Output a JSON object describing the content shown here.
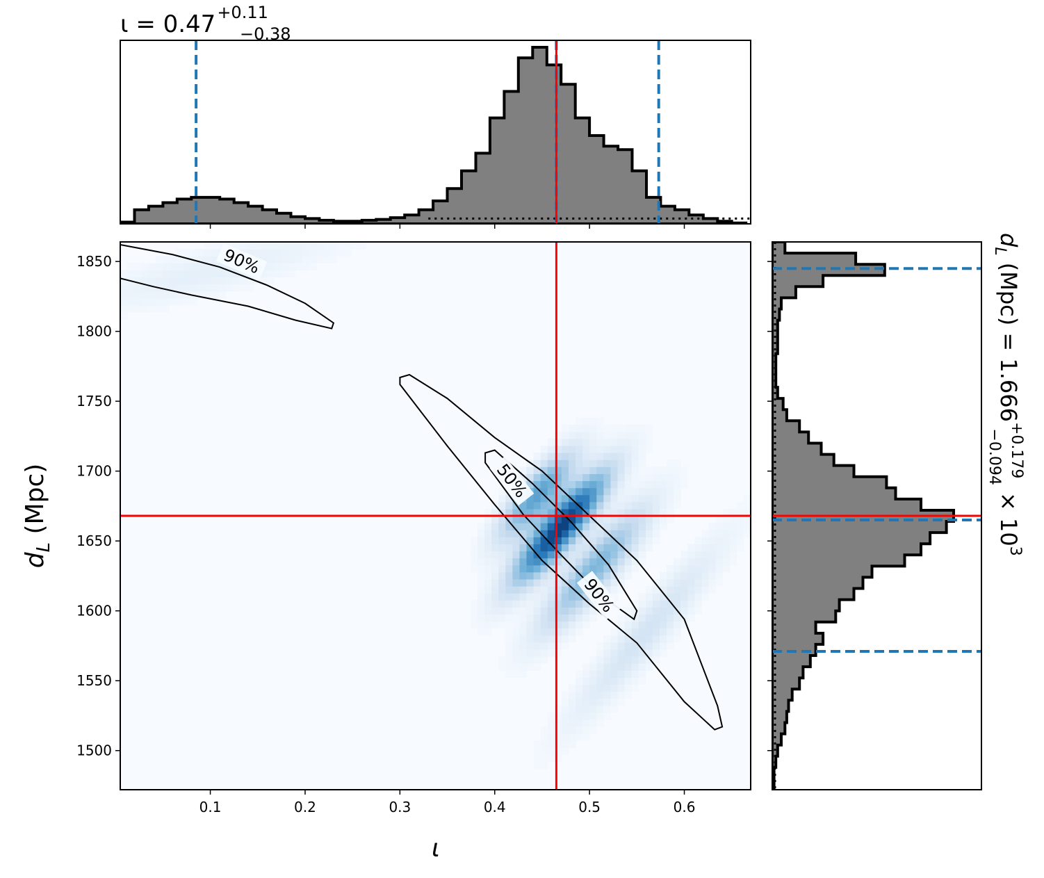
{
  "chart_data": {
    "type": "corner",
    "colors": {
      "histogram_fill": "#808080",
      "histogram_edge": "#000000",
      "quantile_line": "#1f77b4",
      "truth_line": "#ff0000",
      "density_cmap_low": "#f7fbff",
      "density_cmap_high": "#08306b",
      "contour": "#000000"
    },
    "parameters": {
      "x": {
        "symbol": "ι",
        "xlabel": "ι",
        "title_main": "ι = 0.47",
        "title_plus": "+0.11",
        "title_minus": "−0.38",
        "xlim": [
          0.005,
          0.67
        ],
        "ticks": [
          0.1,
          0.2,
          0.3,
          0.4,
          0.5,
          0.6
        ],
        "tick_labels": [
          "0.1",
          "0.2",
          "0.3",
          "0.4",
          "0.5",
          "0.6"
        ]
      },
      "y": {
        "ylabel_main": "d",
        "ylabel_sub": "L",
        "ylabel_unit": " (Mpc)",
        "ylim": [
          1472,
          1864
        ],
        "ticks": [
          1500,
          1550,
          1600,
          1650,
          1700,
          1750,
          1800,
          1850
        ],
        "tick_labels": [
          "1500",
          "1550",
          "1600",
          "1650",
          "1700",
          "1750",
          "1800",
          "1850"
        ],
        "title_prefix": "d",
        "title_sub": "L",
        "title_mid": " (Mpc) = 1.666",
        "title_plus": "+0.179",
        "title_minus": "−0.094",
        "title_suffix": " × 10",
        "title_exp": "3"
      }
    },
    "truth": {
      "x": 0.465,
      "y": 1668
    },
    "marginal_x": {
      "quantiles": [
        0.085,
        0.465,
        0.573
      ],
      "bin_edges": [
        0.005,
        0.02,
        0.035,
        0.05,
        0.065,
        0.08,
        0.095,
        0.11,
        0.125,
        0.14,
        0.155,
        0.17,
        0.185,
        0.2,
        0.215,
        0.23,
        0.245,
        0.26,
        0.275,
        0.29,
        0.305,
        0.32,
        0.335,
        0.35,
        0.365,
        0.38,
        0.395,
        0.41,
        0.425,
        0.44,
        0.455,
        0.47,
        0.485,
        0.5,
        0.515,
        0.53,
        0.545,
        0.56,
        0.575,
        0.59,
        0.605,
        0.62,
        0.635,
        0.65,
        0.665
      ],
      "heights": [
        0.01,
        0.08,
        0.1,
        0.12,
        0.14,
        0.15,
        0.15,
        0.14,
        0.12,
        0.1,
        0.08,
        0.06,
        0.04,
        0.03,
        0.02,
        0.015,
        0.015,
        0.02,
        0.025,
        0.035,
        0.05,
        0.08,
        0.13,
        0.2,
        0.3,
        0.4,
        0.6,
        0.75,
        0.94,
        1.0,
        0.9,
        0.79,
        0.6,
        0.5,
        0.44,
        0.42,
        0.3,
        0.15,
        0.1,
        0.08,
        0.05,
        0.03,
        0.015,
        0.005
      ],
      "prior_level": 0.03
    },
    "marginal_y": {
      "quantiles": [
        1571,
        1665,
        1845
      ],
      "bin_edges": [
        1472,
        1480,
        1488,
        1496,
        1504,
        1512,
        1520,
        1528,
        1536,
        1544,
        1552,
        1560,
        1568,
        1576,
        1584,
        1592,
        1600,
        1608,
        1616,
        1624,
        1632,
        1640,
        1648,
        1656,
        1664,
        1672,
        1680,
        1688,
        1696,
        1704,
        1712,
        1720,
        1728,
        1736,
        1744,
        1752,
        1760,
        1768,
        1776,
        1784,
        1792,
        1800,
        1808,
        1816,
        1824,
        1832,
        1840,
        1848,
        1856,
        1864
      ],
      "heights": [
        0.01,
        0.01,
        0.02,
        0.03,
        0.05,
        0.07,
        0.08,
        0.09,
        0.11,
        0.15,
        0.17,
        0.21,
        0.24,
        0.28,
        0.24,
        0.35,
        0.37,
        0.45,
        0.5,
        0.55,
        0.73,
        0.82,
        0.87,
        0.96,
        1.0,
        0.82,
        0.68,
        0.63,
        0.45,
        0.34,
        0.27,
        0.2,
        0.15,
        0.08,
        0.06,
        0.03,
        0.02,
        0.02,
        0.02,
        0.03,
        0.03,
        0.03,
        0.04,
        0.05,
        0.13,
        0.28,
        0.62,
        0.46,
        0.07
      ]
    },
    "contours": [
      {
        "label": "90%",
        "points": [
          [
            0.005,
            1862
          ],
          [
            0.06,
            1855
          ],
          [
            0.11,
            1846
          ],
          [
            0.16,
            1833
          ],
          [
            0.2,
            1820
          ],
          [
            0.23,
            1806
          ],
          [
            0.228,
            1802
          ],
          [
            0.19,
            1808
          ],
          [
            0.14,
            1818
          ],
          [
            0.08,
            1826
          ],
          [
            0.04,
            1832
          ],
          [
            0.005,
            1838
          ]
        ]
      },
      {
        "label": "90%",
        "points": [
          [
            0.3,
            1767
          ],
          [
            0.31,
            1769
          ],
          [
            0.35,
            1752
          ],
          [
            0.4,
            1724
          ],
          [
            0.45,
            1700
          ],
          [
            0.5,
            1668
          ],
          [
            0.55,
            1636
          ],
          [
            0.6,
            1594
          ],
          [
            0.635,
            1532
          ],
          [
            0.64,
            1517
          ],
          [
            0.632,
            1515
          ],
          [
            0.6,
            1535
          ],
          [
            0.55,
            1577
          ],
          [
            0.5,
            1605
          ],
          [
            0.45,
            1636
          ],
          [
            0.4,
            1676
          ],
          [
            0.35,
            1718
          ],
          [
            0.3,
            1762
          ]
        ]
      },
      {
        "label": "50%",
        "points": [
          [
            0.39,
            1713
          ],
          [
            0.4,
            1715
          ],
          [
            0.44,
            1691
          ],
          [
            0.48,
            1664
          ],
          [
            0.52,
            1633
          ],
          [
            0.55,
            1600
          ],
          [
            0.547,
            1594
          ],
          [
            0.51,
            1612
          ],
          [
            0.47,
            1640
          ],
          [
            0.43,
            1669
          ],
          [
            0.39,
            1706
          ]
        ]
      }
    ],
    "contour_labels": [
      {
        "text": "90%",
        "x": 0.133,
        "y": 1850,
        "angle": 23
      },
      {
        "text": "50%",
        "x": 0.418,
        "y": 1693,
        "angle": 52
      },
      {
        "text": "90%",
        "x": 0.51,
        "y": 1611,
        "angle": 52
      }
    ],
    "density_blobs": [
      {
        "x": 0.1,
        "y": 1843,
        "sx": 0.065,
        "sy": 11,
        "amp": 0.09,
        "angle": -0.28
      },
      {
        "x": 0.445,
        "y": 1683,
        "sx": 0.028,
        "sy": 8,
        "amp": 0.55,
        "angle": -0.95
      },
      {
        "x": 0.47,
        "y": 1660,
        "sx": 0.035,
        "sy": 8,
        "amp": 0.95,
        "angle": -0.95
      },
      {
        "x": 0.505,
        "y": 1630,
        "sx": 0.04,
        "sy": 9,
        "amp": 0.45,
        "angle": -0.95
      },
      {
        "x": 0.56,
        "y": 1585,
        "sx": 0.06,
        "sy": 9,
        "amp": 0.18,
        "angle": -0.95
      }
    ]
  }
}
